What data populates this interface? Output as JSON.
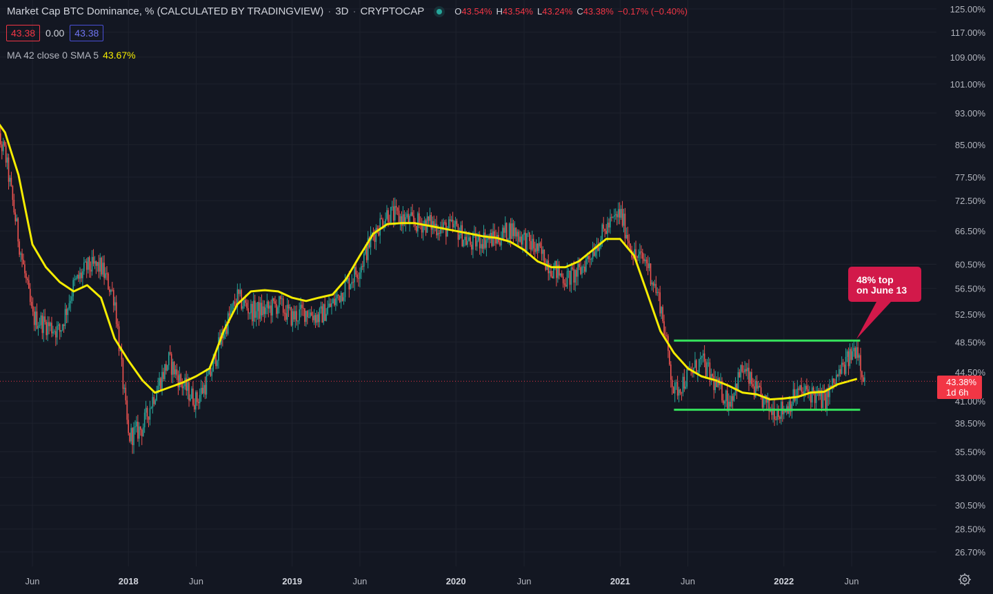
{
  "header": {
    "symbol_title": "Market Cap BTC Dominance, % (CALCULATED BY TRADINGVIEW)",
    "interval": "3D",
    "exchange": "CRYPTOCAP",
    "ohlc": {
      "o_label": "O",
      "o": "43.54%",
      "h_label": "H",
      "h": "43.54%",
      "l_label": "L",
      "l": "43.24%",
      "c_label": "C",
      "c": "43.38%",
      "change": "−0.17% (−0.40%)"
    },
    "sell_value": "43.38",
    "spread": "0.00",
    "buy_value": "43.38",
    "indicator_label": "MA 42 close 0 SMA 5",
    "indicator_value": "43.67%"
  },
  "annotation": {
    "line1": "48% top",
    "line2": "on June 13"
  },
  "price_badge": {
    "price": "43.38%",
    "countdown": "1d 6h"
  },
  "colors": {
    "background": "#131722",
    "up": "#26a69a",
    "down": "#ef5350",
    "ma": "#f5ec00",
    "channel": "#35e35c",
    "callout": "#d2194a",
    "badge": "#f23645"
  },
  "icons": {
    "settings": "gear-icon"
  },
  "chart_data": {
    "type": "candlestick",
    "scale": "log",
    "y_tick_labels": [
      "125.00%",
      "117.00%",
      "109.00%",
      "101.00%",
      "93.00%",
      "85.00%",
      "77.50%",
      "72.50%",
      "66.50%",
      "60.50%",
      "56.50%",
      "52.50%",
      "48.50%",
      "44.50%",
      "41.00%",
      "38.50%",
      "35.50%",
      "33.00%",
      "30.50%",
      "28.50%",
      "26.70%"
    ],
    "x_tick_labels": [
      "Jun",
      "2018",
      "Jun",
      "2019",
      "Jun",
      "2020",
      "Jun",
      "2021",
      "Jun",
      "2022",
      "Jun"
    ],
    "x_tick_dates": [
      "2017-06-01",
      "2018-01-01",
      "2018-06-01",
      "2019-01-01",
      "2019-06-01",
      "2020-01-01",
      "2020-06-01",
      "2021-01-01",
      "2021-06-01",
      "2022-01-01",
      "2022-06-01"
    ],
    "price_keypoints": [
      [
        "2017-03-01",
        90
      ],
      [
        "2017-04-01",
        83
      ],
      [
        "2017-05-01",
        65
      ],
      [
        "2017-06-01",
        52
      ],
      [
        "2017-07-01",
        51
      ],
      [
        "2017-08-01",
        50
      ],
      [
        "2017-09-01",
        57
      ],
      [
        "2017-10-01",
        60
      ],
      [
        "2017-11-01",
        60
      ],
      [
        "2017-12-01",
        55
      ],
      [
        "2018-01-01",
        37
      ],
      [
        "2018-02-01",
        38
      ],
      [
        "2018-03-01",
        42
      ],
      [
        "2018-04-01",
        46
      ],
      [
        "2018-05-01",
        43
      ],
      [
        "2018-06-01",
        41
      ],
      [
        "2018-07-01",
        44
      ],
      [
        "2018-08-01",
        50
      ],
      [
        "2018-09-01",
        55
      ],
      [
        "2018-10-01",
        53
      ],
      [
        "2018-11-01",
        53
      ],
      [
        "2018-12-01",
        54
      ],
      [
        "2019-01-01",
        52
      ],
      [
        "2019-02-01",
        53
      ],
      [
        "2019-03-01",
        52
      ],
      [
        "2019-04-01",
        54
      ],
      [
        "2019-05-01",
        57
      ],
      [
        "2019-06-01",
        60
      ],
      [
        "2019-07-01",
        66
      ],
      [
        "2019-08-01",
        70
      ],
      [
        "2019-09-01",
        69
      ],
      [
        "2019-10-01",
        68
      ],
      [
        "2019-11-01",
        68
      ],
      [
        "2019-12-01",
        67
      ],
      [
        "2020-01-01",
        67
      ],
      [
        "2020-02-01",
        64
      ],
      [
        "2020-03-01",
        65
      ],
      [
        "2020-04-01",
        65
      ],
      [
        "2020-05-01",
        67
      ],
      [
        "2020-06-01",
        65
      ],
      [
        "2020-07-01",
        63
      ],
      [
        "2020-08-01",
        60
      ],
      [
        "2020-09-01",
        58
      ],
      [
        "2020-10-01",
        59
      ],
      [
        "2020-11-01",
        63
      ],
      [
        "2020-12-01",
        67
      ],
      [
        "2021-01-01",
        70
      ],
      [
        "2021-02-01",
        62
      ],
      [
        "2021-03-01",
        61
      ],
      [
        "2021-04-01",
        54
      ],
      [
        "2021-05-01",
        42
      ],
      [
        "2021-06-01",
        44
      ],
      [
        "2021-07-01",
        46
      ],
      [
        "2021-08-01",
        43
      ],
      [
        "2021-09-01",
        41
      ],
      [
        "2021-10-01",
        45
      ],
      [
        "2021-11-01",
        42
      ],
      [
        "2021-12-01",
        40
      ],
      [
        "2022-01-01",
        40
      ],
      [
        "2022-02-01",
        42
      ],
      [
        "2022-03-01",
        42
      ],
      [
        "2022-04-01",
        41
      ],
      [
        "2022-05-01",
        44
      ],
      [
        "2022-06-13",
        48
      ],
      [
        "2022-06-30",
        43.4
      ]
    ],
    "ma_label": "MA 42 close 0 SMA 5",
    "ma_keypoints": [
      [
        "2017-03-01",
        93
      ],
      [
        "2017-04-01",
        88
      ],
      [
        "2017-05-01",
        78
      ],
      [
        "2017-06-01",
        64
      ],
      [
        "2017-07-01",
        60
      ],
      [
        "2017-08-01",
        57.5
      ],
      [
        "2017-09-01",
        56
      ],
      [
        "2017-10-01",
        57
      ],
      [
        "2017-11-01",
        55
      ],
      [
        "2017-12-01",
        49
      ],
      [
        "2018-01-01",
        46
      ],
      [
        "2018-02-01",
        43.5
      ],
      [
        "2018-03-01",
        42
      ],
      [
        "2018-04-01",
        42.6
      ],
      [
        "2018-05-01",
        43.2
      ],
      [
        "2018-06-01",
        44
      ],
      [
        "2018-07-01",
        45
      ],
      [
        "2018-08-01",
        50
      ],
      [
        "2018-09-01",
        54
      ],
      [
        "2018-10-01",
        56
      ],
      [
        "2018-11-01",
        56.2
      ],
      [
        "2018-12-01",
        56
      ],
      [
        "2019-01-01",
        55
      ],
      [
        "2019-02-01",
        54.5
      ],
      [
        "2019-03-01",
        55
      ],
      [
        "2019-04-01",
        55.5
      ],
      [
        "2019-05-01",
        58
      ],
      [
        "2019-06-01",
        62
      ],
      [
        "2019-07-01",
        66
      ],
      [
        "2019-08-01",
        67.8
      ],
      [
        "2019-09-01",
        68
      ],
      [
        "2019-10-01",
        68
      ],
      [
        "2019-11-01",
        67.5
      ],
      [
        "2019-12-01",
        67
      ],
      [
        "2020-01-01",
        66.5
      ],
      [
        "2020-02-01",
        66
      ],
      [
        "2020-03-01",
        65.5
      ],
      [
        "2020-04-01",
        65.2
      ],
      [
        "2020-05-01",
        64.5
      ],
      [
        "2020-06-01",
        63
      ],
      [
        "2020-07-01",
        61
      ],
      [
        "2020-08-01",
        60
      ],
      [
        "2020-09-01",
        60
      ],
      [
        "2020-10-01",
        61
      ],
      [
        "2020-11-01",
        63
      ],
      [
        "2020-12-01",
        65
      ],
      [
        "2021-01-01",
        65
      ],
      [
        "2021-02-01",
        62
      ],
      [
        "2021-03-01",
        56
      ],
      [
        "2021-04-01",
        50
      ],
      [
        "2021-05-01",
        47
      ],
      [
        "2021-06-01",
        45
      ],
      [
        "2021-07-01",
        44
      ],
      [
        "2021-08-01",
        43.5
      ],
      [
        "2021-09-01",
        42.8
      ],
      [
        "2021-10-01",
        42
      ],
      [
        "2021-11-01",
        41.8
      ],
      [
        "2021-12-01",
        41.2
      ],
      [
        "2022-01-01",
        41.3
      ],
      [
        "2022-02-01",
        41.5
      ],
      [
        "2022-03-01",
        42
      ],
      [
        "2022-04-01",
        42.1
      ],
      [
        "2022-05-01",
        43
      ],
      [
        "2022-06-13",
        43.67
      ]
    ],
    "trendlines": [
      {
        "from": [
          "2021-05-01",
          48.7
        ],
        "to": [
          "2022-06-20",
          48.7
        ]
      },
      {
        "from": [
          "2021-05-01",
          40.0
        ],
        "to": [
          "2022-06-20",
          40.0
        ]
      }
    ],
    "current_price": 43.38
  }
}
